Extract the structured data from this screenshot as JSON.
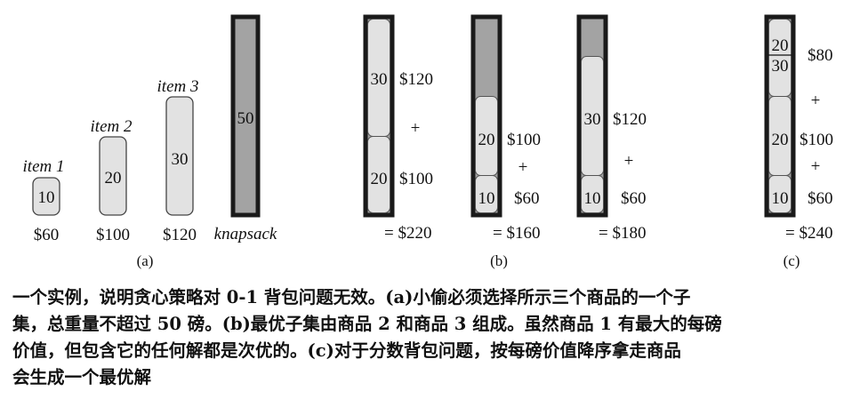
{
  "colors": {
    "item_fill": "#e2e2e2",
    "knapsack_fill": "#a3a3a3",
    "frame": "#1a1a1a",
    "stroke": "#444444"
  },
  "panel_a": {
    "items": [
      {
        "name": "item 1",
        "weight": "10",
        "value": "$60"
      },
      {
        "name": "item 2",
        "weight": "20",
        "value": "$100"
      },
      {
        "name": "item 3",
        "weight": "30",
        "value": "$120"
      }
    ],
    "knapsack": {
      "capacity": "50",
      "label": "knapsack"
    },
    "label": "(a)"
  },
  "panel_b": {
    "solutions": [
      {
        "pieces": [
          "20",
          "30"
        ],
        "prices": [
          "$100",
          "$120"
        ],
        "plus": "+",
        "total": "= $220"
      },
      {
        "pieces": [
          "10",
          "20"
        ],
        "prices": [
          "$60",
          "$100"
        ],
        "plus": "+",
        "total": "= $160"
      },
      {
        "pieces": [
          "10",
          "30"
        ],
        "prices": [
          "$60",
          "$120"
        ],
        "plus": "+",
        "total": "= $180"
      }
    ],
    "label": "(b)"
  },
  "panel_c": {
    "pieces": [
      "10",
      "20"
    ],
    "fraction": {
      "numerator": "20",
      "denominator": "30"
    },
    "prices": [
      "$60",
      "$100",
      "$80"
    ],
    "plus": "+",
    "total": "= $240",
    "label": "(c)"
  },
  "caption": {
    "lines": [
      "一个实例，说明贪心策略对 0-1 背包问题无效。(a)小偷必须选择所示三个商品的一个子",
      "集，总重量不超过 50 磅。(b)最优子集由商品 2 和商品 3 组成。虽然商品 1 有最大的每磅",
      "价值，但包含它的任何解都是次优的。(c)对于分数背包问题，按每磅价值降序拿走商品",
      "会生成一个最优解"
    ]
  }
}
